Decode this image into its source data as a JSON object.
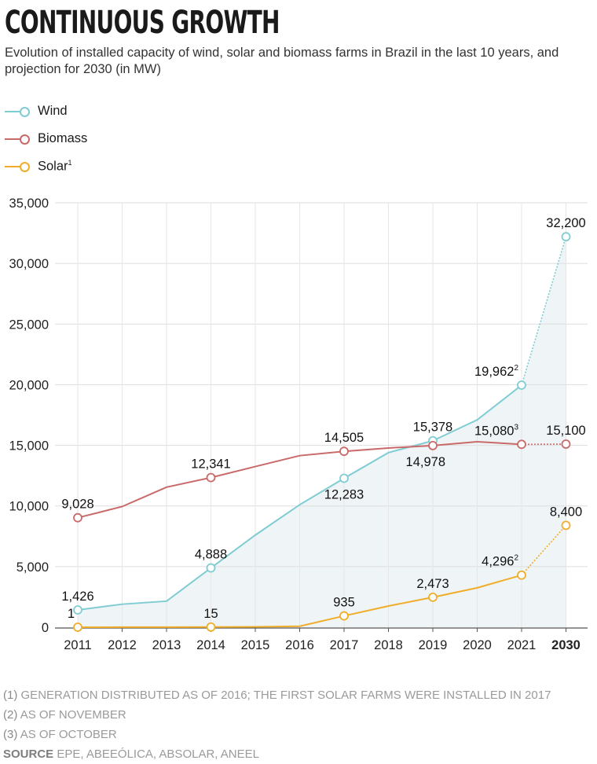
{
  "header": {
    "title": "CONTINUOUS GROWTH",
    "subtitle": "Evolution of installed capacity of wind, solar and biomass farms in Brazil in the last 10 years, and projection for 2030 (in MW)"
  },
  "legend": [
    {
      "label": "Wind",
      "sup": "",
      "color": "#7fcdd3"
    },
    {
      "label": "Biomass",
      "sup": "",
      "color": "#c96a6a"
    },
    {
      "label": "Solar",
      "sup": "1",
      "color": "#f0ad2a"
    }
  ],
  "chart_data": {
    "type": "line",
    "x": [
      "2011",
      "2012",
      "2013",
      "2014",
      "2015",
      "2016",
      "2017",
      "2018",
      "2019",
      "2020",
      "2021",
      "2030"
    ],
    "highlight_x": "2030",
    "ylim": [
      0,
      35000
    ],
    "yticks": [
      0,
      5000,
      10000,
      15000,
      20000,
      25000,
      30000,
      35000
    ],
    "ytick_labels": [
      "0",
      "5,000",
      "10,000",
      "15,000",
      "20,000",
      "25,000",
      "30,000",
      "35,000"
    ],
    "grid": true,
    "area_fill_series": "Wind",
    "projection_from_index": 10,
    "series": [
      {
        "name": "Wind",
        "color": "#7fcdd3",
        "values": [
          1426,
          1900,
          2150,
          4888,
          7600,
          10100,
          12283,
          14400,
          15378,
          17100,
          19962,
          32200
        ],
        "markers": [
          0,
          3,
          6,
          8,
          10,
          11
        ],
        "labels": [
          {
            "i": 0,
            "text": "1,426",
            "sup": "",
            "pos": "above"
          },
          {
            "i": 3,
            "text": "4,888",
            "sup": "",
            "pos": "above"
          },
          {
            "i": 6,
            "text": "12,283",
            "sup": "",
            "pos": "below"
          },
          {
            "i": 8,
            "text": "15,378",
            "sup": "",
            "pos": "above"
          },
          {
            "i": 10,
            "text": "19,962",
            "sup": "2",
            "pos": "above-left"
          },
          {
            "i": 11,
            "text": "32,200",
            "sup": "",
            "pos": "above"
          }
        ]
      },
      {
        "name": "Biomass",
        "color": "#c96a6a",
        "values": [
          9028,
          9950,
          11550,
          12341,
          13250,
          14150,
          14505,
          14780,
          14978,
          15300,
          15080,
          15100
        ],
        "markers": [
          0,
          3,
          6,
          8,
          10,
          11
        ],
        "labels": [
          {
            "i": 0,
            "text": "9,028",
            "sup": "",
            "pos": "above"
          },
          {
            "i": 3,
            "text": "12,341",
            "sup": "",
            "pos": "above"
          },
          {
            "i": 6,
            "text": "14,505",
            "sup": "",
            "pos": "above"
          },
          {
            "i": 8,
            "text": "14,978",
            "sup": "",
            "pos": "below-left"
          },
          {
            "i": 10,
            "text": "15,080",
            "sup": "3",
            "pos": "above-left"
          },
          {
            "i": 11,
            "text": "15,100",
            "sup": "",
            "pos": "above"
          }
        ]
      },
      {
        "name": "Solar",
        "color": "#f0ad2a",
        "values": [
          1,
          5,
          8,
          15,
          30,
          80,
          935,
          1750,
          2473,
          3250,
          4296,
          8400
        ],
        "markers": [
          0,
          3,
          6,
          8,
          10,
          11
        ],
        "labels": [
          {
            "i": 0,
            "text": "1",
            "sup": "",
            "pos": "above-left"
          },
          {
            "i": 3,
            "text": "15",
            "sup": "",
            "pos": "above"
          },
          {
            "i": 6,
            "text": "935",
            "sup": "",
            "pos": "above"
          },
          {
            "i": 8,
            "text": "2,473",
            "sup": "",
            "pos": "above"
          },
          {
            "i": 10,
            "text": "4,296",
            "sup": "2",
            "pos": "above-left"
          },
          {
            "i": 11,
            "text": "8,400",
            "sup": "",
            "pos": "above"
          }
        ]
      }
    ]
  },
  "notes": [
    {
      "key": "(1)",
      "text": "GENERATION DISTRIBUTED AS OF 2016; THE FIRST SOLAR FARMS WERE INSTALLED IN 2017"
    },
    {
      "key": "(2)",
      "text": "AS OF NOVEMBER"
    },
    {
      "key": "(3)",
      "text": "AS OF OCTOBER"
    }
  ],
  "source": {
    "key": "SOURCE",
    "text": "EPE, ABEEÓLICA, ABSOLAR, ANEEL"
  }
}
